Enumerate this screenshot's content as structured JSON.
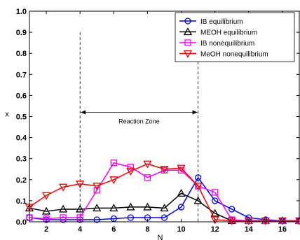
{
  "chart_data": {
    "type": "line",
    "xlabel": "N",
    "ylabel": "x",
    "xlim": [
      1,
      17
    ],
    "ylim": [
      0,
      1.0
    ],
    "xticks": [
      "2",
      "4",
      "6",
      "8",
      "10",
      "12",
      "14",
      "16"
    ],
    "yticks": [
      "0.0",
      "0.1",
      "0.2",
      "0.3",
      "0.4",
      "0.5",
      "0.6",
      "0.7",
      "0.8",
      "0.9",
      "1.0"
    ],
    "legend_position": "top-right",
    "x": [
      1,
      2,
      3,
      4,
      5,
      6,
      7,
      8,
      9,
      10,
      11,
      12,
      13,
      14,
      15,
      16,
      17
    ],
    "series": [
      {
        "name": "IB equilibrium",
        "color": "#0000ff",
        "marker": "circle",
        "values": [
          0.02,
          0.01,
          0.01,
          0.01,
          0.01,
          0.015,
          0.02,
          0.02,
          0.02,
          0.07,
          0.21,
          0.1,
          0.06,
          0.02,
          0.01,
          0.005,
          0.005
        ]
      },
      {
        "name": "MEOH equilibrium",
        "color": "#000000",
        "marker": "triangle-up",
        "values": [
          0.065,
          0.05,
          0.06,
          0.06,
          0.065,
          0.065,
          0.07,
          0.07,
          0.065,
          0.135,
          0.1,
          0.04,
          0.005,
          0.005,
          0.005,
          0.005,
          0.005
        ]
      },
      {
        "name": "IB nonequilibrium",
        "color": "#ff00ff",
        "marker": "square",
        "values": [
          0.02,
          0.015,
          0.02,
          0.02,
          0.15,
          0.28,
          0.26,
          0.21,
          0.245,
          0.245,
          0.17,
          0.14,
          0.01,
          0.005,
          0.005,
          0.005,
          0.005
        ]
      },
      {
        "name": "MeOH nonequilibrium",
        "color": "#ff0000",
        "marker": "triangle-down",
        "values": [
          0.07,
          0.125,
          0.165,
          0.18,
          0.17,
          0.2,
          0.24,
          0.275,
          0.25,
          0.255,
          0.17,
          0.01,
          0.005,
          0.005,
          0.005,
          0.005,
          0.005
        ]
      }
    ],
    "annotations": [
      {
        "text": "Reaction Zone",
        "x_start": 4,
        "x_end": 11
      }
    ]
  }
}
